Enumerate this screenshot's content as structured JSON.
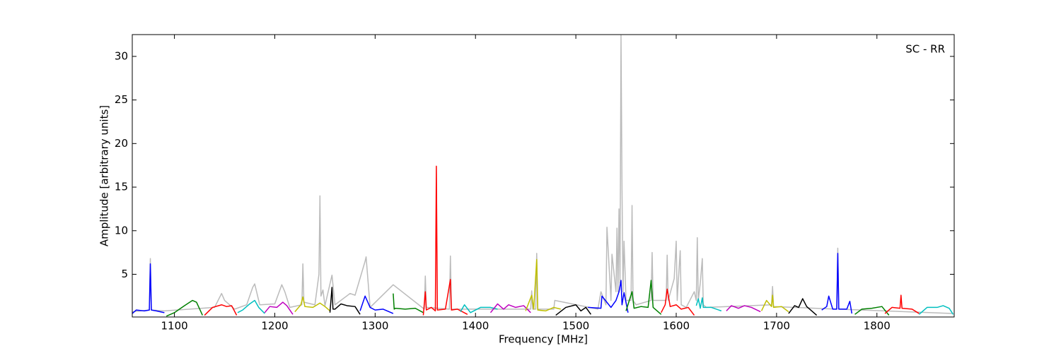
{
  "chart_data": {
    "type": "line",
    "annotation": "SC - RR",
    "x_label": "Frequency [MHz]",
    "y_label": "Amplitude [arbitrary units]",
    "xlim": [
      1058,
      1877
    ],
    "ylim": [
      0.1,
      32.5
    ],
    "xticks": [
      1100,
      1200,
      1300,
      1400,
      1500,
      1600,
      1700,
      1800
    ],
    "yticks": [
      5,
      10,
      15,
      20,
      25,
      30
    ],
    "series": [
      {
        "color": "#bbbbbb",
        "x": [
          1058,
          1075,
          1076,
          1077,
          1090,
          1140,
          1147,
          1150,
          1160,
          1172,
          1178,
          1180,
          1185,
          1200,
          1207,
          1210,
          1215,
          1227,
          1228,
          1229,
          1240,
          1244,
          1245,
          1246,
          1248,
          1250,
          1257,
          1260,
          1275,
          1280,
          1290,
          1291,
          1295,
          1318,
          1349,
          1350,
          1351,
          1374,
          1375,
          1376,
          1455,
          1456,
          1457,
          1460,
          1461,
          1462,
          1478,
          1479,
          1522,
          1525,
          1530,
          1531,
          1535,
          1536,
          1540,
          1541,
          1542,
          1543,
          1544,
          1545,
          1546,
          1547,
          1548,
          1550,
          1555,
          1556,
          1557,
          1560,
          1575,
          1576,
          1577,
          1590,
          1591,
          1592,
          1598,
          1600,
          1601,
          1602,
          1604,
          1605,
          1610,
          1618,
          1620,
          1621,
          1622,
          1624,
          1626,
          1627,
          1630,
          1695,
          1696,
          1697,
          1760,
          1761,
          1762,
          1875
        ],
        "values": [
          0.7,
          0.9,
          6.8,
          0.9,
          0.8,
          1.2,
          2.8,
          2,
          1,
          1.5,
          3.5,
          3.9,
          1.5,
          1.6,
          3.8,
          3,
          1.2,
          1.5,
          6.2,
          1.8,
          1.5,
          5,
          14,
          2.5,
          3.2,
          1.4,
          4.9,
          1.5,
          2.8,
          2.6,
          6.5,
          7,
          1.2,
          3.8,
          1,
          4.8,
          1.2,
          1,
          7.1,
          1,
          1,
          3.1,
          1,
          1,
          7.4,
          1,
          1,
          2,
          1,
          3,
          1.5,
          10.4,
          2,
          7.3,
          3,
          10.3,
          3,
          12.5,
          4,
          32.4,
          14.7,
          3,
          8.8,
          2,
          2,
          12.9,
          2,
          1.5,
          2,
          7.5,
          2,
          2,
          7.2,
          2,
          4.5,
          8.8,
          2,
          4,
          7.7,
          1.5,
          1.2,
          3,
          2,
          9.2,
          2,
          4,
          6.8,
          1.5,
          1.2,
          1.5,
          3.6,
          1.3,
          1,
          8,
          1,
          0.5
        ]
      },
      {
        "color": "#0000ff",
        "x": [
          1058,
          1062,
          1070,
          1075,
          1076,
          1077,
          1082,
          1090
        ],
        "values": [
          0.5,
          0.9,
          0.8,
          0.9,
          6.2,
          0.9,
          0.8,
          0.6
        ]
      },
      {
        "color": "#008000",
        "x": [
          1092,
          1100,
          1110,
          1118,
          1122,
          1128
        ],
        "values": [
          0.2,
          0.6,
          1.4,
          2.0,
          1.8,
          0.3
        ]
      },
      {
        "color": "#ff0000",
        "x": [
          1130,
          1138,
          1147,
          1152,
          1157,
          1162
        ],
        "values": [
          0.3,
          1.2,
          1.5,
          1.3,
          1.4,
          0.3
        ]
      },
      {
        "color": "#00bfbf",
        "x": [
          1163,
          1168,
          1175,
          1180,
          1184,
          1190
        ],
        "values": [
          0.6,
          0.9,
          1.6,
          2.0,
          1.2,
          0.5
        ]
      },
      {
        "color": "#bf00bf",
        "x": [
          1190,
          1195,
          1202,
          1208,
          1212,
          1218
        ],
        "values": [
          0.6,
          1.3,
          1.2,
          1.8,
          1.4,
          0.4
        ]
      },
      {
        "color": "#bfbf00",
        "x": [
          1220,
          1226,
          1228,
          1230,
          1238,
          1245,
          1250,
          1255
        ],
        "values": [
          0.7,
          1.5,
          2.4,
          1.3,
          1.2,
          1.7,
          1.3,
          0.8
        ]
      },
      {
        "color": "#000000",
        "x": [
          1255,
          1257,
          1258,
          1260,
          1266,
          1272,
          1280,
          1285
        ],
        "values": [
          0.6,
          3.5,
          1.0,
          1.0,
          1.6,
          1.4,
          1.3,
          0.4
        ]
      },
      {
        "color": "#0000ff",
        "x": [
          1285,
          1290,
          1295,
          1300,
          1308,
          1318
        ],
        "values": [
          0.8,
          2.5,
          1.2,
          0.9,
          1.0,
          0.5
        ]
      },
      {
        "color": "#008000",
        "x": [
          1318,
          1319,
          1320,
          1330,
          1340,
          1348
        ],
        "values": [
          2.8,
          1.0,
          1.1,
          1.0,
          1.1,
          0.6
        ]
      },
      {
        "color": "#ff0000",
        "x": [
          1348,
          1350,
          1351,
          1356,
          1360,
          1361,
          1362,
          1370,
          1375,
          1376,
          1382,
          1392
        ],
        "values": [
          0.3,
          3.0,
          0.9,
          1.2,
          0.8,
          17.4,
          0.9,
          1.0,
          4.4,
          0.9,
          1.0,
          0.4
        ]
      },
      {
        "color": "#00bfbf",
        "x": [
          1385,
          1389,
          1395,
          1405,
          1415,
          1422
        ],
        "values": [
          0.7,
          1.5,
          0.6,
          1.2,
          1.2,
          1.0
        ]
      },
      {
        "color": "#bf00bf",
        "x": [
          1415,
          1422,
          1428,
          1433,
          1440,
          1448,
          1455
        ],
        "values": [
          0.6,
          1.6,
          1.0,
          1.5,
          1.2,
          1.4,
          0.6
        ]
      },
      {
        "color": "#bfbf00",
        "x": [
          1450,
          1456,
          1458,
          1461,
          1462,
          1470,
          1478,
          1485
        ],
        "values": [
          0.8,
          2.6,
          1.0,
          6.7,
          0.9,
          0.8,
          1.2,
          1.0
        ]
      },
      {
        "color": "#000000",
        "x": [
          1480,
          1490,
          1500,
          1505,
          1510,
          1515
        ],
        "values": [
          0.3,
          1.2,
          1.5,
          0.8,
          1.2,
          0.4
        ]
      },
      {
        "color": "#0000ff",
        "x": [
          1512,
          1525,
          1526,
          1535,
          1540,
          1543,
          1545,
          1546,
          1548,
          1552
        ],
        "values": [
          1.2,
          1.1,
          2.5,
          1.2,
          2.0,
          3.0,
          4.3,
          1.5,
          2.9,
          0.6
        ]
      },
      {
        "color": "#008000",
        "x": [
          1550,
          1556,
          1558,
          1565,
          1572,
          1575,
          1577,
          1585
        ],
        "values": [
          0.8,
          3.0,
          1.1,
          1.3,
          1.2,
          4.3,
          1.2,
          0.4
        ]
      },
      {
        "color": "#ff0000",
        "x": [
          1585,
          1589,
          1591,
          1594,
          1600,
          1605,
          1612,
          1618
        ],
        "values": [
          0.6,
          1.5,
          3.3,
          1.3,
          1.5,
          1.0,
          1.2,
          0.3
        ]
      },
      {
        "color": "#00bfbf",
        "x": [
          1620,
          1622,
          1624,
          1626,
          1627,
          1635,
          1645
        ],
        "values": [
          1.4,
          2.2,
          1.1,
          2.3,
          1.2,
          1.2,
          0.8
        ]
      },
      {
        "color": "#bf00bf",
        "x": [
          1650,
          1655,
          1662,
          1668,
          1675,
          1684
        ],
        "values": [
          0.8,
          1.4,
          1.1,
          1.4,
          1.2,
          0.7
        ]
      },
      {
        "color": "#bfbf00",
        "x": [
          1685,
          1690,
          1695,
          1696,
          1697,
          1705,
          1712
        ],
        "values": [
          0.8,
          2.0,
          1.3,
          2.6,
          1.2,
          1.3,
          0.7
        ]
      },
      {
        "color": "#000000",
        "x": [
          1712,
          1718,
          1722,
          1726,
          1730,
          1740
        ],
        "values": [
          0.5,
          1.4,
          1.2,
          2.2,
          1.3,
          0.3
        ]
      },
      {
        "color": "#0000ff",
        "x": [
          1745,
          1750,
          1752,
          1756,
          1760,
          1761,
          1762,
          1770,
          1773,
          1775
        ],
        "values": [
          0.9,
          1.3,
          2.5,
          1.0,
          1.0,
          7.4,
          1.0,
          1.0,
          1.9,
          0.5
        ]
      },
      {
        "color": "#008000",
        "x": [
          1778,
          1785,
          1795,
          1805,
          1812
        ],
        "values": [
          0.4,
          1.0,
          1.1,
          1.3,
          0.3
        ]
      },
      {
        "color": "#ff0000",
        "x": [
          1808,
          1815,
          1823,
          1824,
          1825,
          1835,
          1842
        ],
        "values": [
          0.5,
          1.2,
          1.1,
          2.6,
          1.1,
          1.0,
          0.5
        ]
      },
      {
        "color": "#00bfbf",
        "x": [
          1842,
          1850,
          1860,
          1866,
          1872,
          1876
        ],
        "values": [
          0.4,
          1.2,
          1.2,
          1.4,
          1.1,
          0.4
        ]
      }
    ]
  }
}
